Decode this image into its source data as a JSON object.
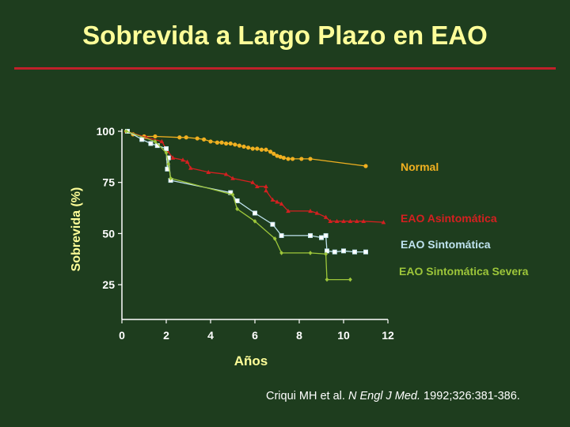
{
  "slide": {
    "title": "Sobrevida a Largo Plazo en EAO",
    "citation_prefix": "Criqui MH et al. ",
    "citation_journal": "N Engl J Med.",
    "citation_suffix": " 1992;326:381-386."
  },
  "colors": {
    "background": "#1e3d1e",
    "title": "#ffff99",
    "rule": "#c0202a",
    "axis": "#ffffff",
    "normal": "#f0b020",
    "asintomatica": "#d42020",
    "sintomatica": "#bfe3ef",
    "severa": "#9dc63a"
  },
  "chart_data": {
    "type": "line",
    "title": "",
    "xlabel": "Años",
    "ylabel": "Sobrevida (%)",
    "xlim": [
      0,
      12
    ],
    "ylim": [
      8,
      100
    ],
    "x_ticks": [
      0,
      2,
      4,
      6,
      8,
      10,
      12
    ],
    "y_ticks": [
      25,
      50,
      75,
      100
    ],
    "x_tick_labels": [
      "0",
      "2",
      "4",
      "6",
      "8",
      "10",
      "12"
    ],
    "y_tick_labels": [
      "25",
      "50",
      "75",
      "100"
    ],
    "grid": false,
    "legend": "right (labels at line ends)",
    "series": [
      {
        "name": "Normal",
        "color": "#f0b020",
        "marker": "circle",
        "points": [
          [
            0.2,
            100
          ],
          [
            0.5,
            98.5
          ],
          [
            1.0,
            97.5
          ],
          [
            1.5,
            97.5
          ],
          [
            2.6,
            97
          ],
          [
            2.9,
            97
          ],
          [
            3.4,
            96.5
          ],
          [
            3.7,
            96
          ],
          [
            4.0,
            95
          ],
          [
            4.3,
            94.5
          ],
          [
            4.5,
            94.5
          ],
          [
            4.7,
            94
          ],
          [
            4.9,
            94
          ],
          [
            5.1,
            93.5
          ],
          [
            5.3,
            93
          ],
          [
            5.5,
            92.5
          ],
          [
            5.7,
            92
          ],
          [
            5.9,
            91.5
          ],
          [
            6.1,
            91.5
          ],
          [
            6.3,
            91
          ],
          [
            6.5,
            91
          ],
          [
            6.7,
            90
          ],
          [
            6.85,
            89
          ],
          [
            7.0,
            88
          ],
          [
            7.15,
            87.5
          ],
          [
            7.3,
            87
          ],
          [
            7.5,
            86.5
          ],
          [
            7.7,
            86.5
          ],
          [
            8.1,
            86.5
          ],
          [
            8.5,
            86.5
          ],
          [
            11.0,
            83
          ]
        ]
      },
      {
        "name": "EAO Asintomática",
        "color": "#d42020",
        "marker": "triangle",
        "points": [
          [
            0.2,
            100
          ],
          [
            1.1,
            97
          ],
          [
            1.8,
            95
          ],
          [
            2.05,
            90.5
          ],
          [
            2.3,
            87
          ],
          [
            2.75,
            86
          ],
          [
            2.95,
            85
          ],
          [
            3.1,
            82
          ],
          [
            3.9,
            80
          ],
          [
            4.7,
            79
          ],
          [
            5.0,
            77
          ],
          [
            5.9,
            75
          ],
          [
            6.1,
            73
          ],
          [
            6.5,
            73
          ],
          [
            6.5,
            71
          ],
          [
            6.8,
            66.5
          ],
          [
            7.0,
            65.5
          ],
          [
            7.2,
            64.5
          ],
          [
            7.5,
            61
          ],
          [
            8.5,
            61
          ],
          [
            8.8,
            60
          ],
          [
            9.2,
            58
          ],
          [
            9.4,
            56
          ],
          [
            9.7,
            56
          ],
          [
            10.0,
            56
          ],
          [
            10.3,
            56
          ],
          [
            10.6,
            56
          ],
          [
            10.9,
            56
          ],
          [
            11.8,
            55.5
          ]
        ]
      },
      {
        "name": "EAO Sintomática",
        "color": "#bfe3ef",
        "marker": "square",
        "points": [
          [
            0.25,
            100
          ],
          [
            0.9,
            96
          ],
          [
            1.3,
            94
          ],
          [
            1.6,
            93
          ],
          [
            2.0,
            91.5
          ],
          [
            2.05,
            81.5
          ],
          [
            2.1,
            87
          ],
          [
            2.2,
            76
          ],
          [
            4.9,
            70
          ],
          [
            5.2,
            66
          ],
          [
            6.0,
            60
          ],
          [
            6.8,
            54.5
          ],
          [
            7.2,
            49
          ],
          [
            8.5,
            49
          ],
          [
            9.0,
            48
          ],
          [
            9.2,
            49
          ],
          [
            9.25,
            41.5
          ],
          [
            9.6,
            41
          ],
          [
            10.0,
            41.5
          ],
          [
            10.5,
            41
          ],
          [
            11.0,
            41
          ]
        ]
      },
      {
        "name": "EAO Sintomática Severa",
        "color": "#9dc63a",
        "marker": "diamond",
        "points": [
          [
            0.2,
            100
          ],
          [
            1.5,
            95
          ],
          [
            2.0,
            89.5
          ],
          [
            2.1,
            84
          ],
          [
            2.2,
            77
          ],
          [
            5.0,
            69
          ],
          [
            5.2,
            62
          ],
          [
            6.0,
            56
          ],
          [
            6.9,
            47.5
          ],
          [
            7.2,
            40.5
          ],
          [
            8.5,
            40.5
          ],
          [
            9.2,
            40
          ],
          [
            9.25,
            27.5
          ],
          [
            10.3,
            27.5
          ]
        ]
      }
    ]
  }
}
